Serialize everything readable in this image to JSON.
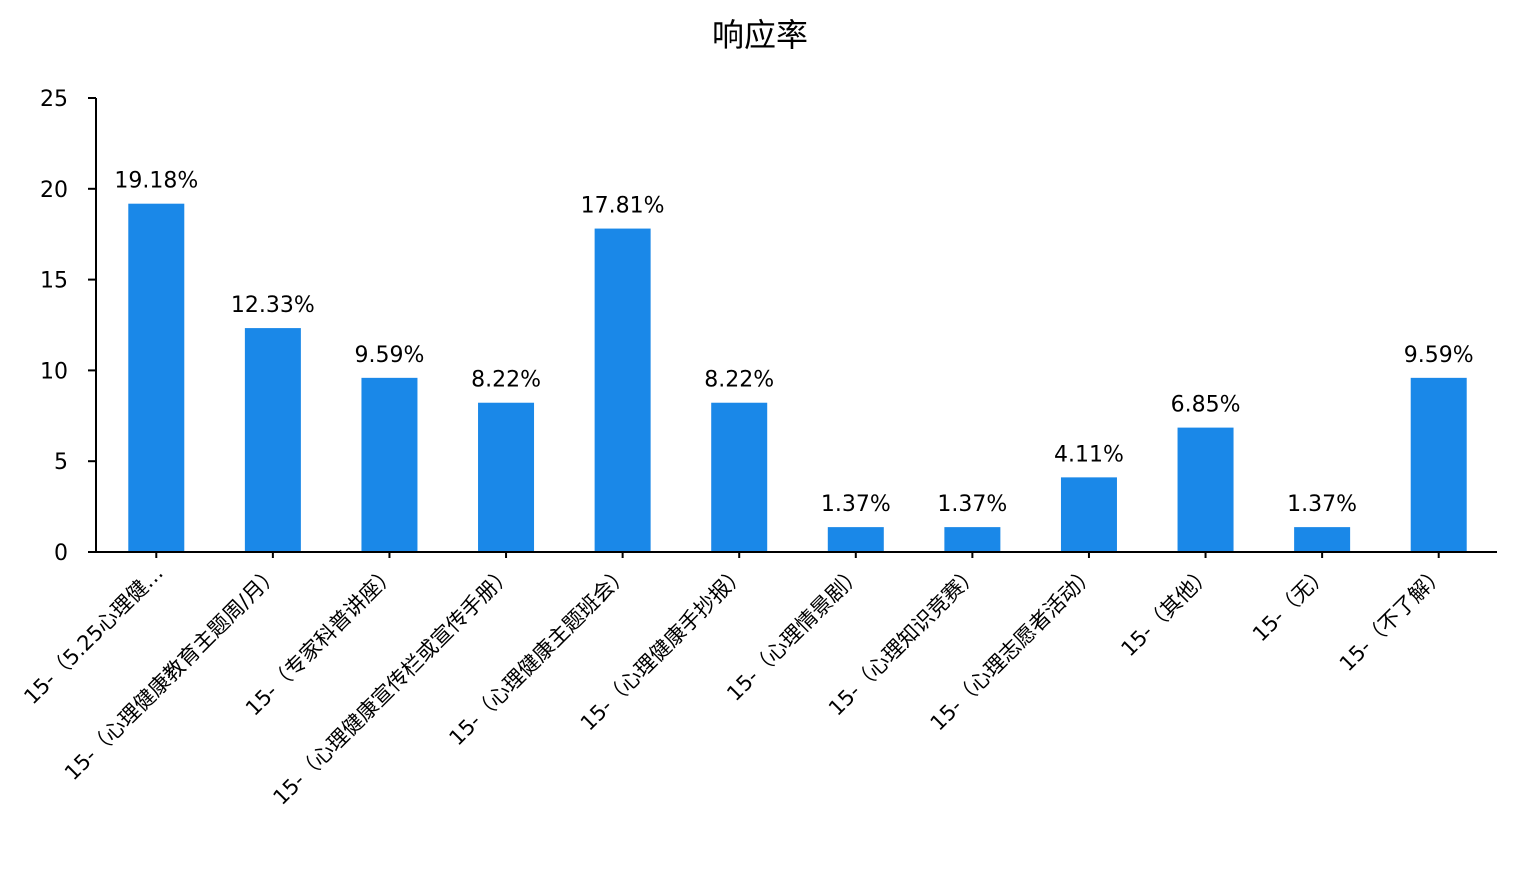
{
  "chart_data": {
    "type": "bar",
    "title": "响应率",
    "xlabel": "",
    "ylabel": "",
    "ylim": [
      0,
      25
    ],
    "yticks": [
      0,
      5,
      10,
      15,
      20,
      25
    ],
    "grid": false,
    "legend": "none",
    "bar_color": "#1a88e8",
    "categories": [
      "15-（5.25心理健…",
      "15-（心理健康教育主题周/月）",
      "15-（专家科普讲座）",
      "15-（心理健康宣传栏或宣传手册）",
      "15-（心理健康主题班会）",
      "15-（心理健康手抄报）",
      "15-（心理情景剧）",
      "15-（心理知识竞赛）",
      "15-（心理志愿者活动）",
      "15-（其他）",
      "15-（无）",
      "15-（不了解）"
    ],
    "values": [
      19.18,
      12.33,
      9.59,
      8.22,
      17.81,
      8.22,
      1.37,
      1.37,
      4.11,
      6.85,
      1.37,
      9.59
    ],
    "data_labels": [
      "19.18%",
      "12.33%",
      "9.59%",
      "8.22%",
      "17.81%",
      "8.22%",
      "1.37%",
      "1.37%",
      "4.11%",
      "6.85%",
      "1.37%",
      "9.59%"
    ]
  }
}
